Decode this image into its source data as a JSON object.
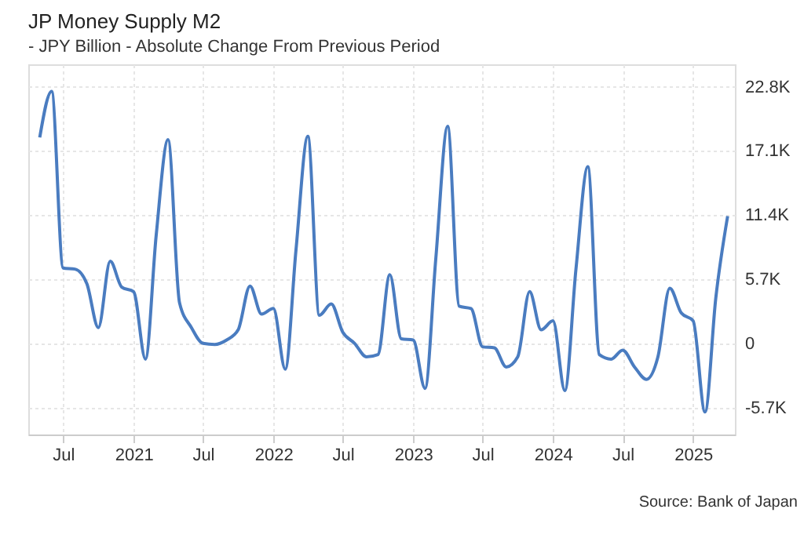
{
  "chart_data": {
    "type": "line",
    "title": "JP Money Supply M2",
    "subtitle": "- JPY Billion - Absolute Change From Previous Period",
    "x": [
      "2020-05",
      "2020-06",
      "2020-07",
      "2020-08",
      "2020-09",
      "2020-10",
      "2020-11",
      "2020-12",
      "2021-01",
      "2021-02",
      "2021-03",
      "2021-04",
      "2021-05",
      "2021-06",
      "2021-07",
      "2021-08",
      "2021-09",
      "2021-10",
      "2021-11",
      "2021-12",
      "2022-01",
      "2022-02",
      "2022-03",
      "2022-04",
      "2022-05",
      "2022-06",
      "2022-07",
      "2022-08",
      "2022-09",
      "2022-10",
      "2022-11",
      "2022-12",
      "2023-01",
      "2023-02",
      "2023-03",
      "2023-04",
      "2023-05",
      "2023-06",
      "2023-07",
      "2023-08",
      "2023-09",
      "2023-10",
      "2023-11",
      "2023-12",
      "2024-01",
      "2024-02",
      "2024-03",
      "2024-04",
      "2024-05",
      "2024-06",
      "2024-07",
      "2024-08",
      "2024-09",
      "2024-10",
      "2024-11",
      "2024-12",
      "2025-01",
      "2025-02",
      "2025-03",
      "2025-04"
    ],
    "series": [
      {
        "color": "#4a7cc0",
        "values": [
          18300,
          22400,
          6700,
          6600,
          5300,
          1400,
          7300,
          5000,
          4600,
          -1400,
          9600,
          18100,
          3600,
          1400,
          0,
          -100,
          300,
          1200,
          5100,
          2600,
          3100,
          -2300,
          8300,
          18400,
          2500,
          3500,
          1000,
          0,
          -1200,
          -1000,
          6100,
          400,
          300,
          -4000,
          7500,
          19300,
          3300,
          3100,
          -300,
          -400,
          -2100,
          -1200,
          4600,
          1200,
          2000,
          -4200,
          6600,
          15700,
          -1000,
          -1400,
          -600,
          -2100,
          -3200,
          -1200,
          4900,
          2700,
          2000,
          -6100,
          4000,
          11300
        ]
      }
    ],
    "xlim": [
      "2020-04-01",
      "2025-04-20"
    ],
    "xticks": [
      {
        "value": "2020-07-01",
        "label": "Jul"
      },
      {
        "value": "2021-01-01",
        "label": "2021"
      },
      {
        "value": "2021-07-01",
        "label": "Jul"
      },
      {
        "value": "2022-01-01",
        "label": "2022"
      },
      {
        "value": "2022-07-01",
        "label": "Jul"
      },
      {
        "value": "2023-01-01",
        "label": "2023"
      },
      {
        "value": "2023-07-01",
        "label": "Jul"
      },
      {
        "value": "2024-01-01",
        "label": "2024"
      },
      {
        "value": "2024-07-01",
        "label": "Jul"
      },
      {
        "value": "2025-01-01",
        "label": "2025"
      }
    ],
    "ylim": [
      -8100,
      24800
    ],
    "yticks": [
      {
        "value": -5700,
        "label": "-5.7K"
      },
      0,
      {
        "value": 5700,
        "label": "5.7K"
      },
      {
        "value": 11400,
        "label": "11.4K"
      },
      {
        "value": 17100,
        "label": "17.1K"
      },
      {
        "value": 22800,
        "label": "22.8K"
      }
    ],
    "grid": true,
    "marker": "none",
    "line_style": "solid",
    "annotations": [
      "Source: Bank of Japan"
    ]
  }
}
